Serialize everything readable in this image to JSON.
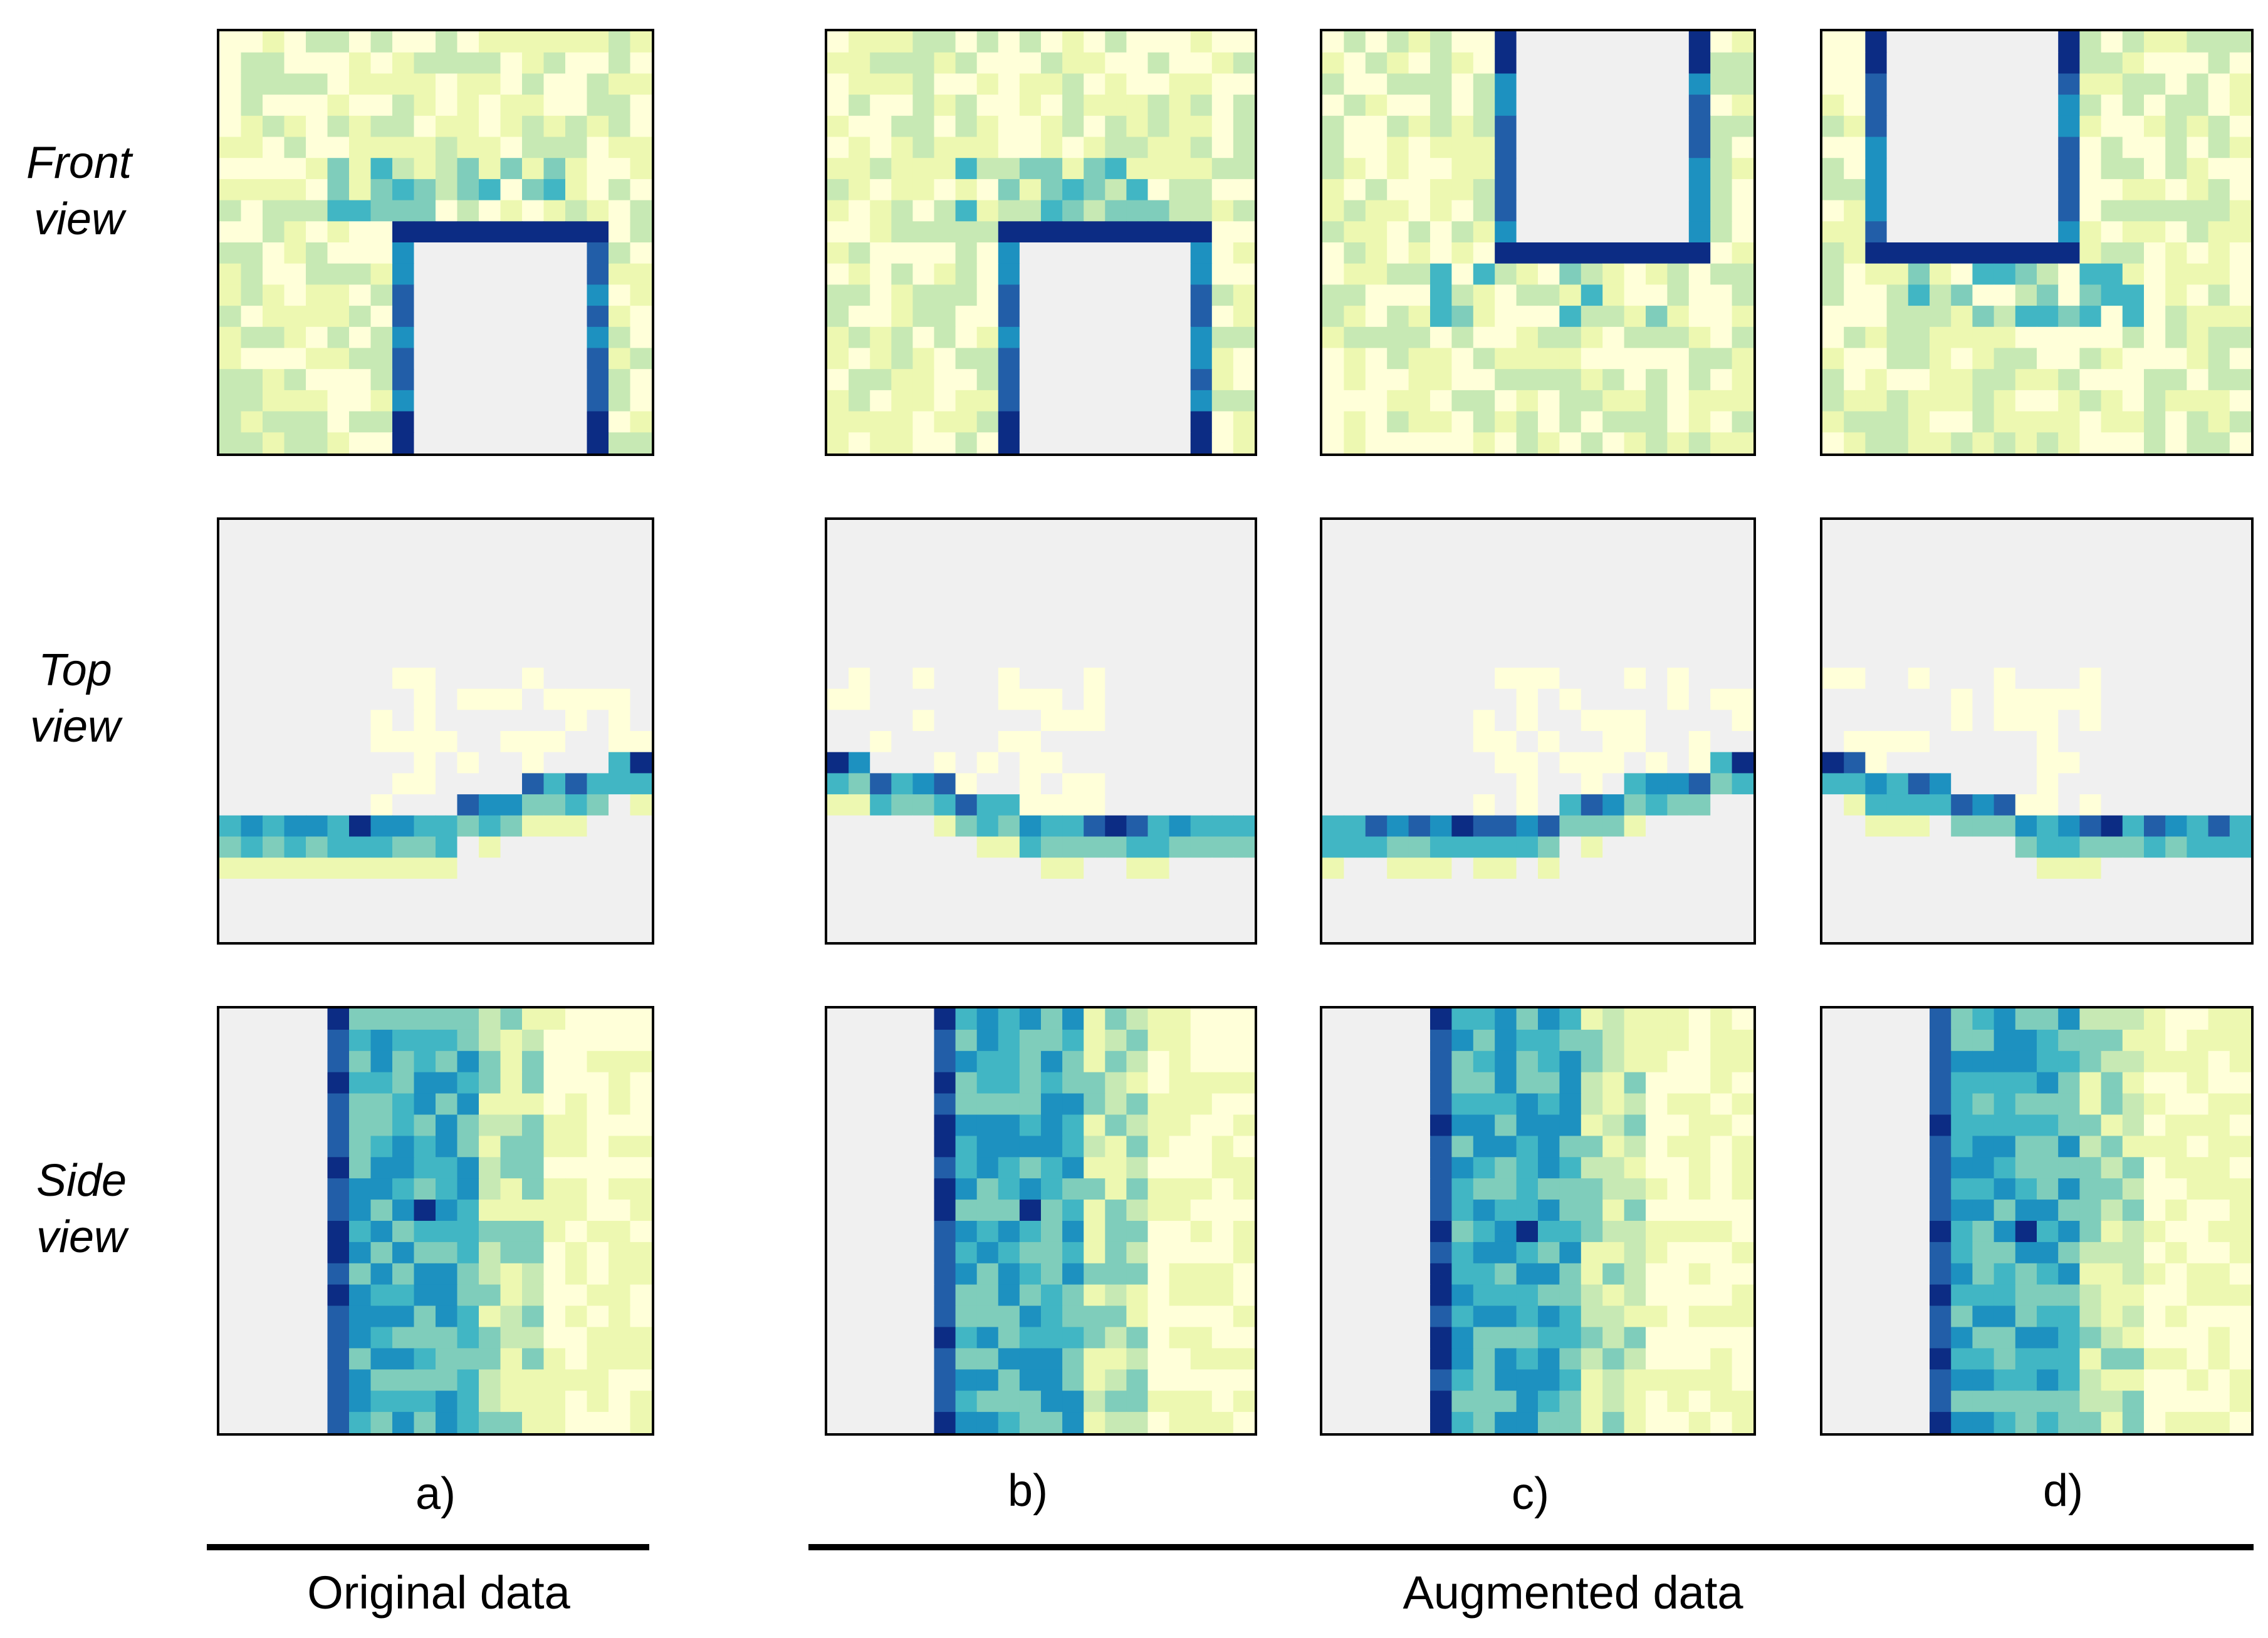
{
  "row_labels": [
    {
      "line1": "Front",
      "line2": "view"
    },
    {
      "line1": "Top",
      "line2": "view"
    },
    {
      "line1": "Side",
      "line2": "view"
    }
  ],
  "column_labels": [
    "a)",
    "b)",
    "c)",
    "d)"
  ],
  "group_labels": {
    "original": "Original data",
    "augmented": "Augmented data"
  },
  "colormap": [
    "#f0f0f0",
    "#ffffd9",
    "#edf8b1",
    "#c7e9b4",
    "#7fcdbb",
    "#41b6c4",
    "#1d91c0",
    "#225ea8",
    "#0c2c84"
  ]
}
